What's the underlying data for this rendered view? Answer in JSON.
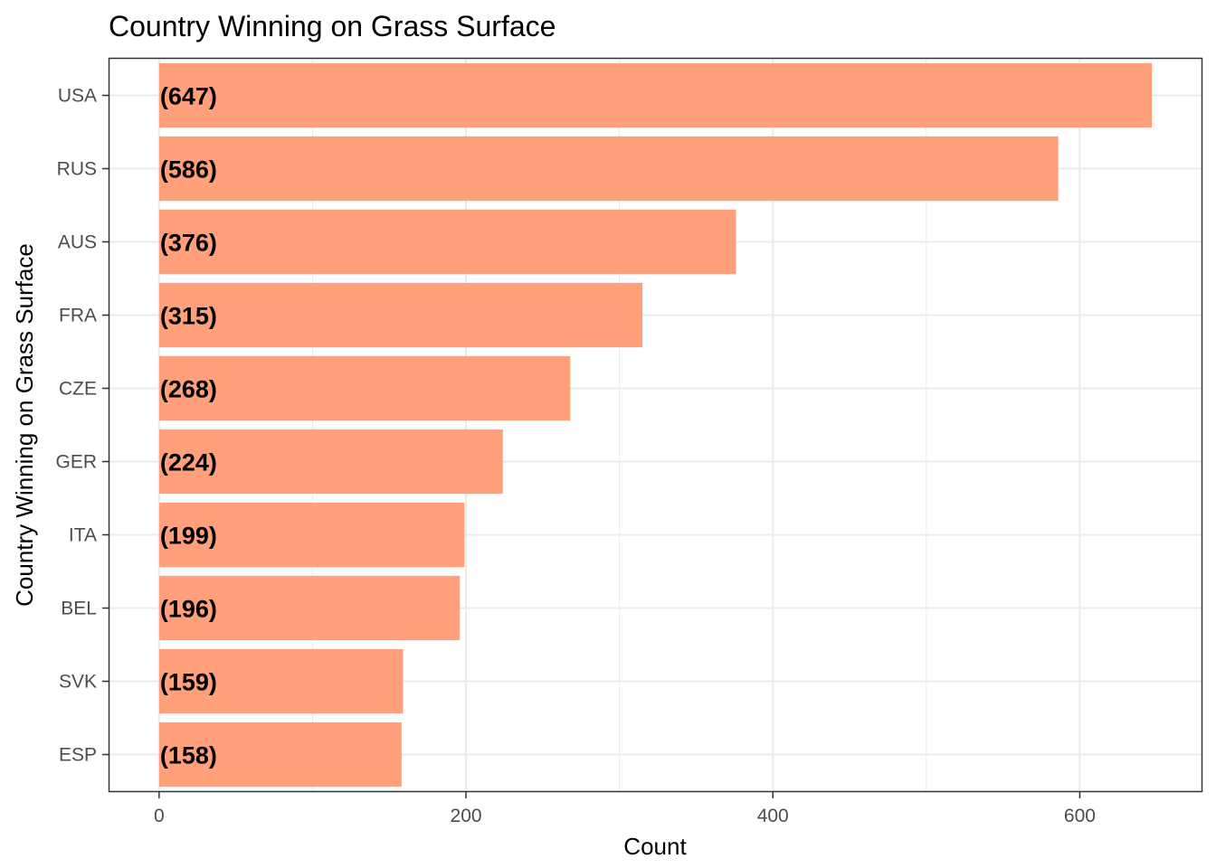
{
  "chart_data": {
    "type": "bar",
    "orientation": "horizontal",
    "title": "Country Winning on Grass Surface",
    "xlabel": "Count",
    "ylabel": "Country Winning on Grass Surface",
    "categories": [
      "USA",
      "RUS",
      "AUS",
      "FRA",
      "CZE",
      "GER",
      "ITA",
      "BEL",
      "SVK",
      "ESP"
    ],
    "values": [
      647,
      586,
      376,
      315,
      268,
      224,
      199,
      196,
      159,
      158
    ],
    "data_labels": [
      "(647)",
      "(586)",
      "(376)",
      "(315)",
      "(268)",
      "(224)",
      "(199)",
      "(196)",
      "(159)",
      "(158)"
    ],
    "xlim": [
      -32.35,
      679.35
    ],
    "x_ticks": [
      0,
      200,
      400,
      600
    ],
    "x_tick_labels": [
      "0",
      "200",
      "400",
      "600"
    ],
    "grid": true,
    "legend": "none",
    "colors": {
      "bar": "#FFA07A",
      "panel_border": "#333333",
      "grid": "#EBEBEB",
      "tick_text": "#4D4D4D"
    }
  }
}
